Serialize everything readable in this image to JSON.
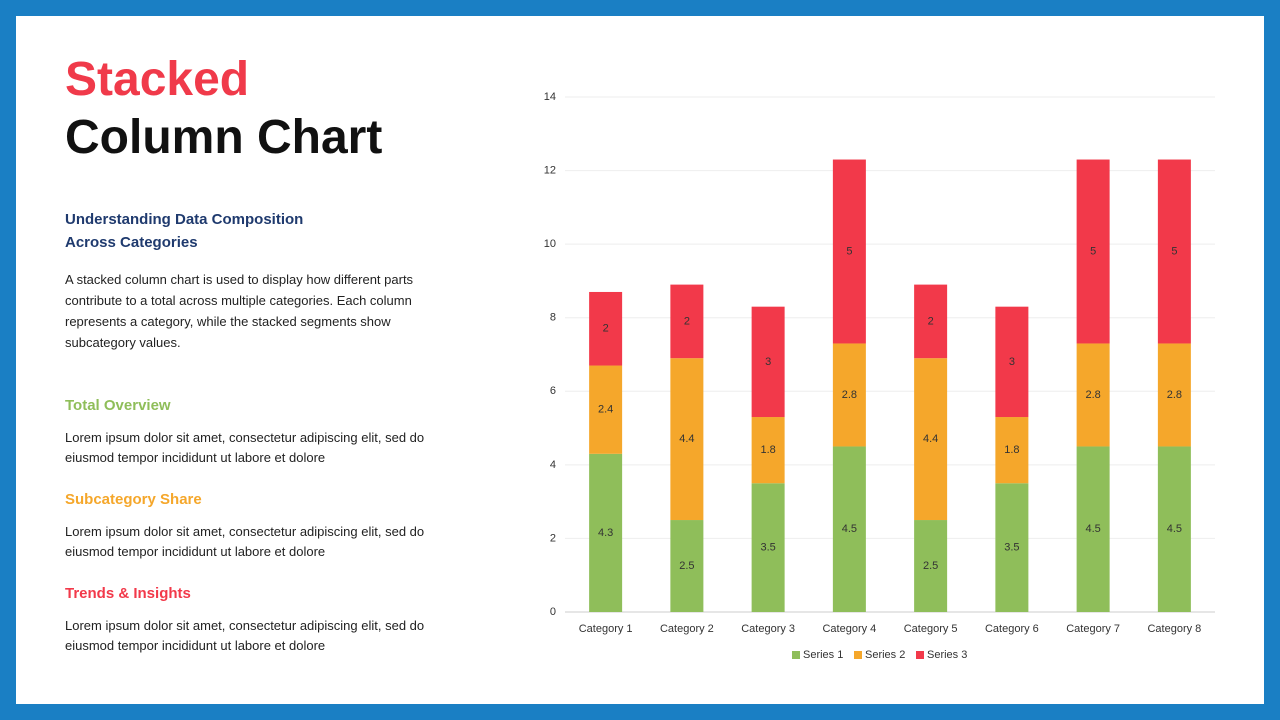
{
  "slide": {
    "title_line1": "Stacked",
    "title_line2": "Column Chart",
    "subtitle": "Understanding Data Composition Across Categories",
    "description": "A stacked column chart is used to display how different parts contribute to a total across multiple categories. Each column represents a category, while the stacked segments show subcategory values.",
    "sections": [
      {
        "heading": "Total Overview",
        "body": "Lorem ipsum dolor sit amet, consectetur adipiscing elit, sed do eiusmod tempor incididunt ut labore et dolore"
      },
      {
        "heading": "Subcategory Share",
        "body": "Lorem ipsum dolor sit amet, consectetur adipiscing elit, sed do eiusmod tempor incididunt ut labore et dolore"
      },
      {
        "heading": "Trends & Insights",
        "body": "Lorem ipsum dolor sit amet, consectetur adipiscing elit, sed do eiusmod tempor incididunt ut labore et dolore"
      }
    ]
  },
  "chart_data": {
    "type": "stacked_bar",
    "categories": [
      "Category 1",
      "Category 2",
      "Category 3",
      "Category 4",
      "Category 5",
      "Category 6",
      "Category 7",
      "Category 8"
    ],
    "series": [
      {
        "name": "Series 1",
        "color": "#8fbe5a",
        "values": [
          4.3,
          2.5,
          3.5,
          4.5,
          2.5,
          3.5,
          4.5,
          4.5
        ]
      },
      {
        "name": "Series 2",
        "color": "#f5a72b",
        "values": [
          2.4,
          4.4,
          1.8,
          2.8,
          4.4,
          1.8,
          2.8,
          2.8
        ]
      },
      {
        "name": "Series 3",
        "color": "#f2394a",
        "values": [
          2,
          2,
          3,
          5,
          2,
          3,
          5,
          5
        ]
      }
    ],
    "ylim": [
      0,
      14
    ],
    "yticks": [
      0,
      2,
      4,
      6,
      8,
      10,
      12,
      14
    ],
    "grid": true,
    "legend": "bottom"
  }
}
